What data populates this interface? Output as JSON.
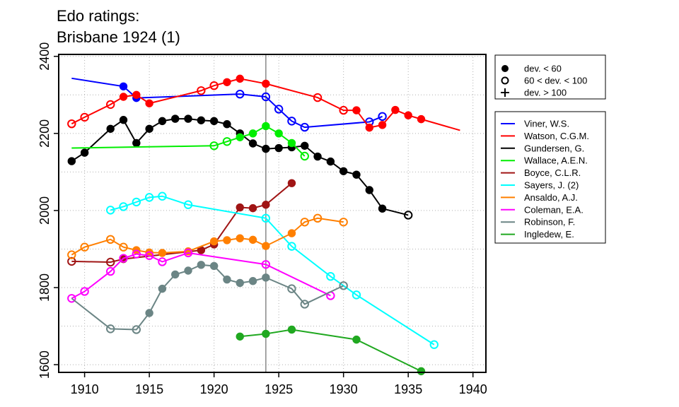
{
  "chart_data": {
    "type": "line",
    "title_lines": [
      "Edo ratings:",
      "Brisbane 1924 (1)"
    ],
    "xlim": [
      1908,
      1941
    ],
    "ylim": [
      1580,
      2405
    ],
    "x_ticks": [
      1910,
      1915,
      1920,
      1925,
      1930,
      1935,
      1940
    ],
    "y_ticks": [
      1600,
      1800,
      2000,
      2200,
      2400
    ],
    "grid": true,
    "reference_line_x": 1924,
    "marker_legend": [
      {
        "label": "dev. < 60",
        "marker": "filled"
      },
      {
        "label": "60 < dev. < 100",
        "marker": "open"
      },
      {
        "label": "dev. > 100",
        "marker": "plus"
      }
    ],
    "series": [
      {
        "name": "Viner, W.S.",
        "color": "#0000ff",
        "points": [
          [
            1909,
            2343,
            "none"
          ],
          [
            1913,
            2322,
            "filled"
          ],
          [
            1914,
            2292,
            "filled"
          ],
          [
            1922,
            2302,
            "open"
          ],
          [
            1924,
            2295,
            "open"
          ],
          [
            1925,
            2263,
            "open"
          ],
          [
            1926,
            2232,
            "open"
          ],
          [
            1927,
            2216,
            "open"
          ],
          [
            1932,
            2230,
            "open"
          ],
          [
            1933,
            2244,
            "open"
          ]
        ]
      },
      {
        "name": "Watson, C.G.M.",
        "color": "#ff0000",
        "points": [
          [
            1909,
            2225,
            "open"
          ],
          [
            1910,
            2242,
            "open"
          ],
          [
            1912,
            2275,
            "open"
          ],
          [
            1913,
            2295,
            "filled"
          ],
          [
            1914,
            2300,
            "filled"
          ],
          [
            1915,
            2278,
            "filled"
          ],
          [
            1919,
            2311,
            "open"
          ],
          [
            1920,
            2324,
            "open"
          ],
          [
            1921,
            2333,
            "filled"
          ],
          [
            1922,
            2342,
            "filled"
          ],
          [
            1924,
            2329,
            "filled"
          ],
          [
            1928,
            2293,
            "open"
          ],
          [
            1930,
            2260,
            "open"
          ],
          [
            1931,
            2260,
            "filled"
          ],
          [
            1932,
            2215,
            "filled"
          ],
          [
            1933,
            2222,
            "filled"
          ],
          [
            1934,
            2261,
            "filled"
          ],
          [
            1935,
            2247,
            "filled"
          ],
          [
            1936,
            2237,
            "filled"
          ],
          [
            1939,
            2208,
            "none"
          ]
        ]
      },
      {
        "name": "Gundersen, G.",
        "color": "#000000",
        "points": [
          [
            1909,
            2128,
            "filled"
          ],
          [
            1910,
            2150,
            "filled"
          ],
          [
            1912,
            2212,
            "filled"
          ],
          [
            1913,
            2235,
            "filled"
          ],
          [
            1914,
            2175,
            "filled"
          ],
          [
            1915,
            2212,
            "filled"
          ],
          [
            1916,
            2232,
            "filled"
          ],
          [
            1917,
            2238,
            "filled"
          ],
          [
            1918,
            2238,
            "filled"
          ],
          [
            1919,
            2234,
            "filled"
          ],
          [
            1920,
            2232,
            "filled"
          ],
          [
            1921,
            2224,
            "filled"
          ],
          [
            1922,
            2200,
            "filled"
          ],
          [
            1923,
            2174,
            "filled"
          ],
          [
            1924,
            2160,
            "filled"
          ],
          [
            1925,
            2162,
            "filled"
          ],
          [
            1926,
            2164,
            "filled"
          ],
          [
            1927,
            2168,
            "filled"
          ],
          [
            1928,
            2140,
            "filled"
          ],
          [
            1929,
            2127,
            "filled"
          ],
          [
            1930,
            2102,
            "filled"
          ],
          [
            1931,
            2093,
            "filled"
          ],
          [
            1932,
            2053,
            "filled"
          ],
          [
            1933,
            2005,
            "filled"
          ],
          [
            1935,
            1988,
            "open"
          ]
        ]
      },
      {
        "name": "Wallace, A.E.N.",
        "color": "#00ee00",
        "points": [
          [
            1909,
            2162,
            "none"
          ],
          [
            1920,
            2168,
            "open"
          ],
          [
            1921,
            2179,
            "open"
          ],
          [
            1922,
            2190,
            "filled"
          ],
          [
            1923,
            2200,
            "filled"
          ],
          [
            1924,
            2219,
            "filled"
          ],
          [
            1925,
            2200,
            "filled"
          ],
          [
            1926,
            2175,
            "filled"
          ],
          [
            1927,
            2141,
            "open"
          ]
        ]
      },
      {
        "name": "Boyce, C.L.R.",
        "color": "#a01515",
        "points": [
          [
            1909,
            1868,
            "open"
          ],
          [
            1912,
            1866,
            "open"
          ],
          [
            1913,
            1874,
            "filled"
          ],
          [
            1919,
            1897,
            "filled"
          ],
          [
            1920,
            1912,
            "filled"
          ],
          [
            1922,
            2008,
            "filled"
          ],
          [
            1923,
            2006,
            "filled"
          ],
          [
            1924,
            2015,
            "filled"
          ],
          [
            1926,
            2071,
            "filled"
          ]
        ]
      },
      {
        "name": "Sayers, J. (2)",
        "color": "#00ffff",
        "points": [
          [
            1912,
            2001,
            "open"
          ],
          [
            1913,
            2010,
            "open"
          ],
          [
            1914,
            2022,
            "open"
          ],
          [
            1915,
            2034,
            "open"
          ],
          [
            1916,
            2037,
            "open"
          ],
          [
            1918,
            2015,
            "open"
          ],
          [
            1924,
            1980,
            "open"
          ],
          [
            1926,
            1907,
            "open"
          ],
          [
            1929,
            1829,
            "open"
          ],
          [
            1931,
            1781,
            "open"
          ],
          [
            1937,
            1652,
            "open"
          ]
        ]
      },
      {
        "name": "Ansaldo, A.J.",
        "color": "#ff7f00",
        "points": [
          [
            1909,
            1885,
            "open"
          ],
          [
            1910,
            1905,
            "open"
          ],
          [
            1912,
            1925,
            "open"
          ],
          [
            1913,
            1905,
            "open"
          ],
          [
            1914,
            1897,
            "filled"
          ],
          [
            1915,
            1891,
            "filled"
          ],
          [
            1916,
            1890,
            "filled"
          ],
          [
            1918,
            1894,
            "filled"
          ],
          [
            1920,
            1920,
            "filled"
          ],
          [
            1921,
            1923,
            "filled"
          ],
          [
            1922,
            1928,
            "filled"
          ],
          [
            1923,
            1924,
            "filled"
          ],
          [
            1924,
            1908,
            "filled"
          ],
          [
            1926,
            1941,
            "filled"
          ],
          [
            1927,
            1970,
            "open"
          ],
          [
            1928,
            1980,
            "open"
          ],
          [
            1930,
            1970,
            "open"
          ]
        ]
      },
      {
        "name": "Coleman, E.A.",
        "color": "#ff00ff",
        "points": [
          [
            1909,
            1772,
            "open"
          ],
          [
            1910,
            1790,
            "open"
          ],
          [
            1912,
            1842,
            "open"
          ],
          [
            1913,
            1876,
            "open"
          ],
          [
            1914,
            1887,
            "open"
          ],
          [
            1915,
            1883,
            "open"
          ],
          [
            1916,
            1867,
            "open"
          ],
          [
            1918,
            1890,
            "open"
          ],
          [
            1924,
            1860,
            "open"
          ],
          [
            1929,
            1779,
            "open"
          ]
        ]
      },
      {
        "name": "Robinson, F.",
        "color": "#6b8585",
        "points": [
          [
            1909,
            1772,
            "none"
          ],
          [
            1912,
            1693,
            "open"
          ],
          [
            1914,
            1691,
            "open"
          ],
          [
            1915,
            1734,
            "filled"
          ],
          [
            1916,
            1797,
            "filled"
          ],
          [
            1917,
            1834,
            "filled"
          ],
          [
            1918,
            1844,
            "filled"
          ],
          [
            1919,
            1859,
            "filled"
          ],
          [
            1920,
            1856,
            "filled"
          ],
          [
            1921,
            1821,
            "filled"
          ],
          [
            1922,
            1812,
            "filled"
          ],
          [
            1923,
            1817,
            "filled"
          ],
          [
            1924,
            1826,
            "filled"
          ],
          [
            1926,
            1797,
            "open"
          ],
          [
            1927,
            1757,
            "open"
          ],
          [
            1930,
            1805,
            "open"
          ]
        ]
      },
      {
        "name": "Ingledew, E.",
        "color": "#20a820",
        "points": [
          [
            1922,
            1673,
            "filled"
          ],
          [
            1924,
            1680,
            "filled"
          ],
          [
            1926,
            1691,
            "filled"
          ],
          [
            1931,
            1665,
            "filled"
          ],
          [
            1936,
            1583,
            "filled"
          ]
        ]
      }
    ]
  }
}
